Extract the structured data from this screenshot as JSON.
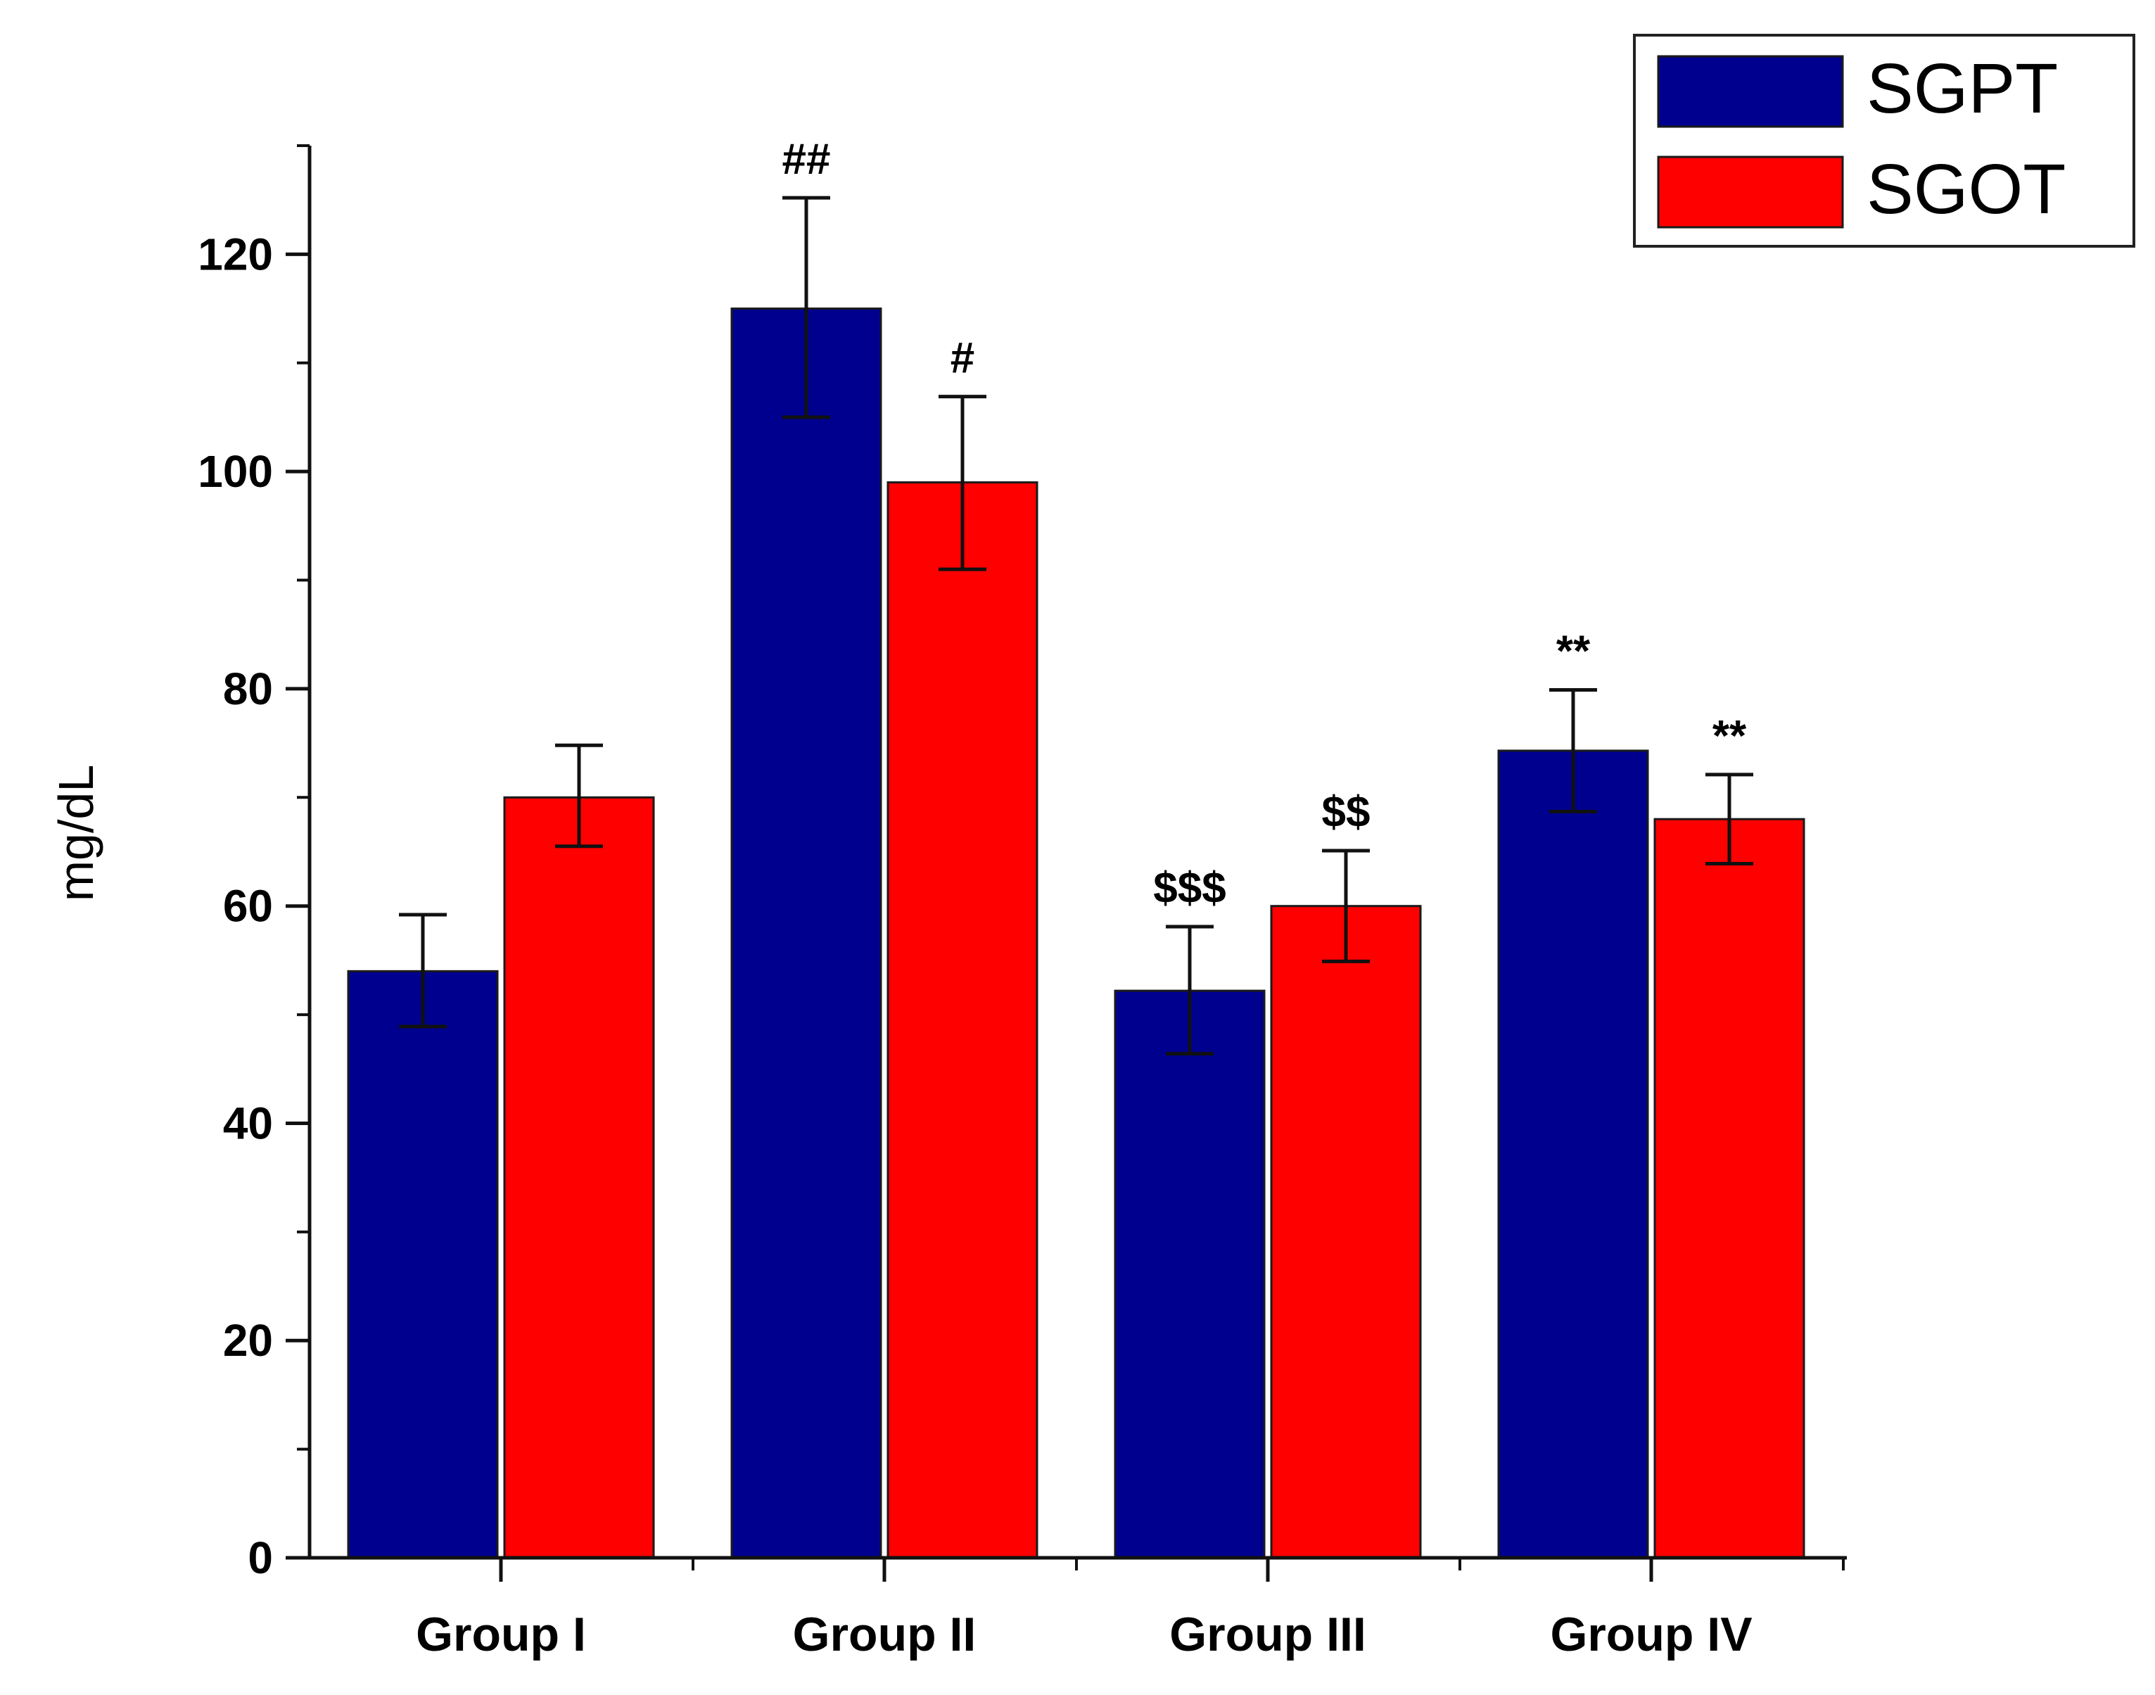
{
  "chart_data": {
    "type": "bar",
    "title": "",
    "xlabel": "",
    "ylabel": "mg/dL",
    "ylim": [
      0,
      130
    ],
    "yticks": [
      0,
      20,
      40,
      60,
      80,
      100,
      120
    ],
    "categories": [
      "Group I",
      "Group II",
      "Group III",
      "Group IV"
    ],
    "grid": false,
    "legend_position": "top-right",
    "series": [
      {
        "name": "SGPT",
        "color": "#00008f",
        "values": [
          54,
          115,
          52.2,
          74.3
        ],
        "error_upper": [
          59.2,
          125.2,
          58.1,
          79.9
        ],
        "error_lower": [
          48.9,
          105,
          46.4,
          68.7
        ],
        "annotations": [
          "",
          "##",
          "$$$",
          "**"
        ]
      },
      {
        "name": "SGOT",
        "color": "#ff0000",
        "values": [
          70,
          99,
          60,
          68
        ],
        "error_upper": [
          74.8,
          106.9,
          65.1,
          72.1
        ],
        "error_lower": [
          65.5,
          91,
          54.9,
          63.9
        ],
        "annotations": [
          "",
          "#",
          "$$",
          "**"
        ]
      }
    ]
  }
}
